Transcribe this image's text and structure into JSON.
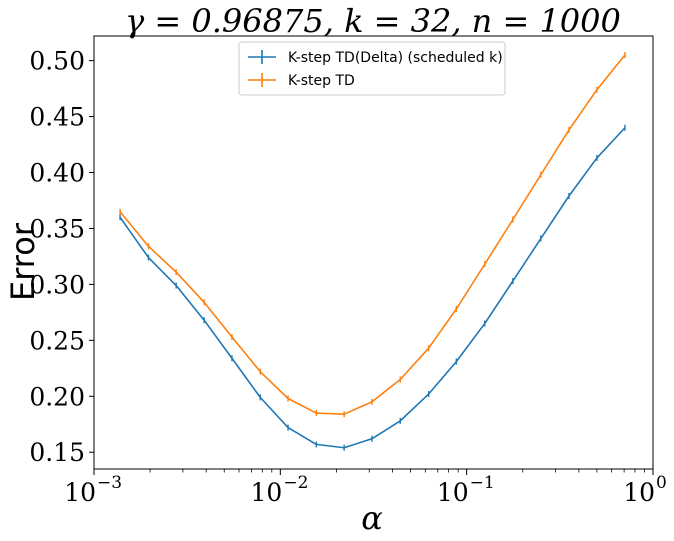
{
  "chart_data": {
    "type": "line",
    "title": "γ = 0.96875, k = 32, n = 1000",
    "xlabel": "α",
    "ylabel": "Error",
    "xscale": "log",
    "xlim": [
      0.001,
      1
    ],
    "ylim": [
      0.135,
      0.522
    ],
    "x_ticks": [
      {
        "value": 0.001,
        "base": "10",
        "exp": "−3"
      },
      {
        "value": 0.01,
        "base": "10",
        "exp": "−2"
      },
      {
        "value": 0.1,
        "base": "10",
        "exp": "−1"
      },
      {
        "value": 1,
        "base": "10",
        "exp": "0"
      }
    ],
    "y_ticks": [
      {
        "value": 0.15,
        "label": "0.15"
      },
      {
        "value": 0.2,
        "label": "0.20"
      },
      {
        "value": 0.25,
        "label": "0.25"
      },
      {
        "value": 0.3,
        "label": "0.30"
      },
      {
        "value": 0.35,
        "label": "0.35"
      },
      {
        "value": 0.4,
        "label": "0.40"
      },
      {
        "value": 0.45,
        "label": "0.45"
      },
      {
        "value": 0.5,
        "label": "0.50"
      }
    ],
    "legend_position": "top-center",
    "grid": false,
    "x": [
      0.00138,
      0.00196,
      0.00276,
      0.0039,
      0.0055,
      0.0078,
      0.011,
      0.0156,
      0.022,
      0.031,
      0.044,
      0.0625,
      0.088,
      0.125,
      0.177,
      0.25,
      0.354,
      0.5,
      0.707
    ],
    "series": [
      {
        "name": "K-step TD(Delta) (scheduled k)",
        "color": "#1f77b4",
        "values": [
          0.36,
          0.324,
          0.299,
          0.268,
          0.234,
          0.199,
          0.172,
          0.157,
          0.154,
          0.162,
          0.178,
          0.202,
          0.231,
          0.265,
          0.303,
          0.341,
          0.379,
          0.413,
          0.44
        ]
      },
      {
        "name": "K-step TD",
        "color": "#ff7f0e",
        "values": [
          0.365,
          0.334,
          0.311,
          0.284,
          0.253,
          0.222,
          0.198,
          0.185,
          0.184,
          0.195,
          0.215,
          0.243,
          0.278,
          0.318,
          0.358,
          0.398,
          0.438,
          0.474,
          0.505
        ]
      }
    ]
  }
}
